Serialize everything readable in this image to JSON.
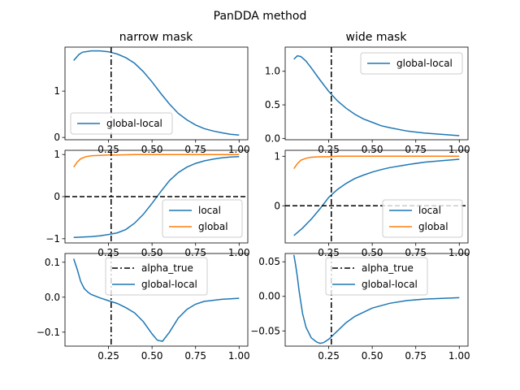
{
  "figure": {
    "suptitle": "PanDDA method"
  },
  "chart_data": [
    {
      "type": "line",
      "title": "narrow mask",
      "xlim": [
        0.0,
        1.05
      ],
      "ylim": [
        -0.05,
        1.95
      ],
      "xticks": [
        0.25,
        0.5,
        0.75,
        1.0
      ],
      "xtick_labels": [
        "0.25",
        "0.50",
        "0.75",
        "1.00"
      ],
      "yticks": [
        0,
        1
      ],
      "ytick_labels": [
        "0",
        "1"
      ],
      "legend": "lower-left",
      "series": [
        {
          "name": "global-local",
          "color": "#1f77b4",
          "style": "solid",
          "x": [
            0.05,
            0.08,
            0.1,
            0.15,
            0.2,
            0.25,
            0.3,
            0.35,
            0.4,
            0.45,
            0.5,
            0.55,
            0.6,
            0.65,
            0.7,
            0.75,
            0.8,
            0.85,
            0.9,
            0.95,
            1.0
          ],
          "y": [
            1.66,
            1.79,
            1.84,
            1.87,
            1.87,
            1.85,
            1.8,
            1.72,
            1.6,
            1.42,
            1.2,
            0.95,
            0.72,
            0.52,
            0.38,
            0.27,
            0.19,
            0.14,
            0.1,
            0.07,
            0.05
          ]
        }
      ],
      "vlines": [
        {
          "x": 0.265,
          "style": "dashdot",
          "color": "#000000"
        }
      ],
      "hlines": []
    },
    {
      "type": "line",
      "title": "wide mask",
      "xlim": [
        0.0,
        1.05
      ],
      "ylim": [
        -0.02,
        1.36
      ],
      "xticks": [
        0.25,
        0.5,
        0.75,
        1.0
      ],
      "xtick_labels": [
        "0.25",
        "0.50",
        "0.75",
        "1.00"
      ],
      "yticks": [
        0.0,
        0.5,
        1.0
      ],
      "ytick_labels": [
        "0.0",
        "0.5",
        "1.0"
      ],
      "legend": "upper-right",
      "series": [
        {
          "name": "global-local",
          "color": "#1f77b4",
          "style": "solid",
          "x": [
            0.05,
            0.07,
            0.09,
            0.12,
            0.15,
            0.2,
            0.25,
            0.3,
            0.35,
            0.4,
            0.45,
            0.5,
            0.55,
            0.6,
            0.7,
            0.8,
            0.9,
            1.0
          ],
          "y": [
            1.18,
            1.23,
            1.22,
            1.15,
            1.05,
            0.87,
            0.7,
            0.56,
            0.45,
            0.36,
            0.29,
            0.24,
            0.19,
            0.16,
            0.11,
            0.08,
            0.06,
            0.04
          ]
        }
      ],
      "vlines": [
        {
          "x": 0.265,
          "style": "dashdot",
          "color": "#000000"
        }
      ],
      "hlines": []
    },
    {
      "type": "line",
      "title": "",
      "xlim": [
        0.0,
        1.05
      ],
      "ylim": [
        -1.1,
        1.1
      ],
      "xticks": [
        0.25,
        0.5,
        0.75,
        1.0
      ],
      "xtick_labels": [
        "0.25",
        "0.50",
        "0.75",
        "1.00"
      ],
      "yticks": [
        -1,
        0,
        1
      ],
      "ytick_labels": [
        "−1",
        "0",
        "1"
      ],
      "legend": "lower-right",
      "series": [
        {
          "name": "local",
          "color": "#1f77b4",
          "style": "solid",
          "x": [
            0.05,
            0.1,
            0.15,
            0.2,
            0.25,
            0.3,
            0.35,
            0.4,
            0.45,
            0.5,
            0.55,
            0.6,
            0.65,
            0.7,
            0.75,
            0.8,
            0.85,
            0.9,
            0.95,
            1.0
          ],
          "y": [
            -0.97,
            -0.96,
            -0.95,
            -0.93,
            -0.9,
            -0.86,
            -0.78,
            -0.63,
            -0.42,
            -0.16,
            0.12,
            0.38,
            0.57,
            0.7,
            0.79,
            0.85,
            0.89,
            0.92,
            0.94,
            0.95
          ]
        },
        {
          "name": "global",
          "color": "#ff7f0e",
          "style": "solid",
          "x": [
            0.05,
            0.07,
            0.09,
            0.12,
            0.15,
            0.2,
            0.25,
            0.3,
            0.4,
            0.5,
            0.6,
            0.7,
            0.8,
            0.9,
            1.0
          ],
          "y": [
            0.7,
            0.82,
            0.9,
            0.95,
            0.97,
            0.98,
            0.99,
            0.99,
            1.0,
            1.0,
            1.0,
            1.0,
            1.0,
            1.0,
            1.0
          ]
        }
      ],
      "vlines": [
        {
          "x": 0.265,
          "style": "dashdot",
          "color": "#000000"
        }
      ],
      "hlines": [
        {
          "y": 0,
          "style": "dashed",
          "color": "#000000"
        }
      ]
    },
    {
      "type": "line",
      "title": "",
      "xlim": [
        0.0,
        1.05
      ],
      "ylim": [
        -0.75,
        1.12
      ],
      "xticks": [
        0.25,
        0.5,
        0.75,
        1.0
      ],
      "xtick_labels": [
        "0.25",
        "0.50",
        "0.75",
        "1.00"
      ],
      "yticks": [
        0,
        1
      ],
      "ytick_labels": [
        "0",
        "1"
      ],
      "legend": "lower-right",
      "series": [
        {
          "name": "local",
          "color": "#1f77b4",
          "style": "solid",
          "x": [
            0.05,
            0.1,
            0.15,
            0.2,
            0.25,
            0.3,
            0.35,
            0.4,
            0.45,
            0.5,
            0.55,
            0.6,
            0.7,
            0.8,
            0.9,
            1.0
          ],
          "y": [
            -0.6,
            -0.45,
            -0.27,
            -0.06,
            0.17,
            0.33,
            0.45,
            0.55,
            0.62,
            0.68,
            0.73,
            0.77,
            0.83,
            0.88,
            0.91,
            0.94
          ]
        },
        {
          "name": "global",
          "color": "#ff7f0e",
          "style": "solid",
          "x": [
            0.05,
            0.07,
            0.09,
            0.12,
            0.15,
            0.2,
            0.25,
            0.3,
            0.4,
            0.5,
            0.6,
            0.7,
            0.8,
            0.9,
            1.0
          ],
          "y": [
            0.75,
            0.85,
            0.92,
            0.96,
            0.98,
            0.99,
            0.99,
            1.0,
            1.0,
            1.0,
            1.0,
            1.0,
            1.0,
            1.0,
            1.0
          ]
        }
      ],
      "vlines": [
        {
          "x": 0.265,
          "style": "dashdot",
          "color": "#000000"
        }
      ],
      "hlines": [
        {
          "y": 0,
          "style": "dashed",
          "color": "#000000"
        }
      ]
    },
    {
      "type": "line",
      "title": "",
      "xlim": [
        0.0,
        1.05
      ],
      "ylim": [
        -0.14,
        0.125
      ],
      "xticks": [
        0.25,
        0.5,
        0.75,
        1.0
      ],
      "xtick_labels": [
        "0.25",
        "0.50",
        "0.75",
        "1.00"
      ],
      "yticks": [
        -0.1,
        0.0,
        0.1
      ],
      "ytick_labels": [
        "−0.1",
        "0.0",
        "0.1"
      ],
      "legend": "upper-center",
      "series": [
        {
          "name": "alpha_true",
          "color": "#000000",
          "style": "dashdot",
          "legend_only": true
        },
        {
          "name": "global-local",
          "color": "#1f77b4",
          "style": "solid",
          "x": [
            0.05,
            0.07,
            0.09,
            0.11,
            0.13,
            0.15,
            0.2,
            0.25,
            0.3,
            0.35,
            0.4,
            0.45,
            0.5,
            0.53,
            0.56,
            0.6,
            0.65,
            0.7,
            0.75,
            0.8,
            0.9,
            1.0
          ],
          "y": [
            0.11,
            0.08,
            0.045,
            0.025,
            0.015,
            0.008,
            -0.002,
            -0.01,
            -0.018,
            -0.03,
            -0.045,
            -0.07,
            -0.105,
            -0.123,
            -0.126,
            -0.1,
            -0.06,
            -0.035,
            -0.02,
            -0.012,
            -0.006,
            -0.003
          ]
        }
      ],
      "vlines": [
        {
          "x": 0.265,
          "style": "dashdot",
          "color": "#000000"
        }
      ],
      "hlines": []
    },
    {
      "type": "line",
      "title": "",
      "xlim": [
        0.0,
        1.05
      ],
      "ylim": [
        -0.072,
        0.062
      ],
      "xticks": [
        0.25,
        0.5,
        0.75,
        1.0
      ],
      "xtick_labels": [
        "0.25",
        "0.50",
        "0.75",
        "1.00"
      ],
      "yticks": [
        -0.05,
        0.0,
        0.05
      ],
      "ytick_labels": [
        "−0.05",
        "0.00",
        "0.05"
      ],
      "legend": "upper-center",
      "series": [
        {
          "name": "alpha_true",
          "color": "#000000",
          "style": "dashdot",
          "legend_only": true
        },
        {
          "name": "global-local",
          "color": "#1f77b4",
          "style": "solid",
          "x": [
            0.05,
            0.06,
            0.07,
            0.08,
            0.1,
            0.12,
            0.15,
            0.18,
            0.2,
            0.22,
            0.25,
            0.3,
            0.35,
            0.4,
            0.5,
            0.6,
            0.7,
            0.8,
            0.9,
            1.0
          ],
          "y": [
            0.06,
            0.045,
            0.028,
            0.008,
            -0.025,
            -0.045,
            -0.06,
            -0.066,
            -0.068,
            -0.067,
            -0.062,
            -0.05,
            -0.038,
            -0.029,
            -0.017,
            -0.01,
            -0.006,
            -0.004,
            -0.003,
            -0.002
          ]
        }
      ],
      "vlines": [
        {
          "x": 0.265,
          "style": "dashdot",
          "color": "#000000"
        }
      ],
      "hlines": []
    }
  ]
}
